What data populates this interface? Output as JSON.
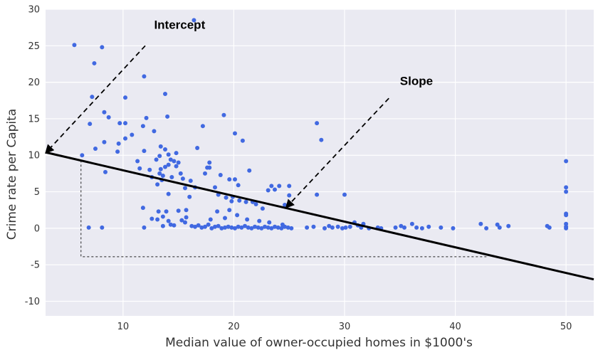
{
  "chart_data": {
    "type": "scatter",
    "title": "",
    "xlabel": "Median value of owner-occupied homes in $1000's",
    "ylabel": "Crime rate per Capita",
    "xlim": [
      3,
      52.5
    ],
    "ylim": [
      -12,
      30
    ],
    "xticks": [
      10,
      20,
      30,
      40,
      50
    ],
    "yticks": [
      -10,
      -5,
      0,
      5,
      10,
      15,
      20,
      25,
      30
    ],
    "grid": true,
    "background_color": "#eaeaf2",
    "point_color": "#4169e1",
    "regression_line": {
      "color": "#000000",
      "points": [
        [
          3,
          10.4
        ],
        [
          52.5,
          -7.0
        ]
      ]
    },
    "guide_box": {
      "x": [
        6.2,
        43
      ],
      "y": [
        9.3,
        -3.9
      ]
    },
    "annotations": [
      {
        "text": "Intercept",
        "text_at": [
          12.8,
          27.3
        ],
        "arrow_from": [
          12.0,
          25.0
        ],
        "arrow_to": [
          3.0,
          10.3
        ]
      },
      {
        "text": "Slope",
        "text_at": [
          35,
          19.6
        ],
        "arrow_from": [
          34.0,
          17.8
        ],
        "arrow_to": [
          24.7,
          2.8
        ]
      }
    ],
    "points": [
      [
        5.6,
        25.1
      ],
      [
        7.0,
        14.3
      ],
      [
        7.2,
        18.0
      ],
      [
        7.4,
        22.6
      ],
      [
        7.5,
        10.9
      ],
      [
        8.1,
        24.8
      ],
      [
        8.3,
        15.9
      ],
      [
        8.3,
        11.8
      ],
      [
        8.4,
        7.7
      ],
      [
        8.7,
        15.2
      ],
      [
        9.5,
        10.5
      ],
      [
        9.6,
        11.6
      ],
      [
        9.7,
        14.4
      ],
      [
        10.2,
        14.4
      ],
      [
        10.2,
        17.9
      ],
      [
        10.2,
        12.3
      ],
      [
        10.8,
        12.8
      ],
      [
        11.3,
        9.2
      ],
      [
        11.5,
        8.2
      ],
      [
        11.8,
        14.0
      ],
      [
        11.9,
        10.6
      ],
      [
        11.9,
        20.8
      ],
      [
        12.1,
        15.1
      ],
      [
        12.4,
        8.0
      ],
      [
        12.6,
        7.0
      ],
      [
        12.8,
        13.3
      ],
      [
        13.0,
        9.4
      ],
      [
        13.1,
        6.0
      ],
      [
        13.3,
        9.9
      ],
      [
        13.3,
        7.5
      ],
      [
        13.4,
        8.1
      ],
      [
        13.4,
        11.2
      ],
      [
        13.5,
        6.6
      ],
      [
        13.6,
        7.2
      ],
      [
        13.8,
        10.8
      ],
      [
        13.8,
        8.4
      ],
      [
        13.8,
        18.4
      ],
      [
        14.0,
        15.3
      ],
      [
        14.1,
        10.1
      ],
      [
        14.1,
        8.7
      ],
      [
        14.1,
        4.7
      ],
      [
        14.3,
        9.4
      ],
      [
        14.4,
        7.0
      ],
      [
        14.6,
        9.2
      ],
      [
        14.8,
        8.5
      ],
      [
        14.8,
        10.3
      ],
      [
        15.0,
        9.0
      ],
      [
        15.2,
        7.5
      ],
      [
        15.4,
        6.8
      ],
      [
        15.6,
        5.5
      ],
      [
        15.7,
        2.5
      ],
      [
        16.0,
        4.3
      ],
      [
        16.1,
        6.5
      ],
      [
        16.4,
        28.5
      ],
      [
        16.5,
        5.6
      ],
      [
        16.7,
        11.0
      ],
      [
        17.2,
        14.0
      ],
      [
        17.4,
        7.5
      ],
      [
        17.6,
        8.3
      ],
      [
        17.8,
        8.3
      ],
      [
        17.8,
        9.0
      ],
      [
        18.3,
        5.6
      ],
      [
        18.6,
        4.6
      ],
      [
        18.8,
        7.3
      ],
      [
        19.1,
        15.5
      ],
      [
        19.3,
        4.2
      ],
      [
        19.6,
        6.7
      ],
      [
        19.8,
        3.7
      ],
      [
        19.9,
        4.3
      ],
      [
        20.1,
        6.7
      ],
      [
        20.1,
        13.0
      ],
      [
        20.4,
        5.9
      ],
      [
        20.5,
        3.8
      ],
      [
        20.8,
        12.0
      ],
      [
        21.1,
        3.6
      ],
      [
        21.4,
        7.9
      ],
      [
        21.7,
        3.6
      ],
      [
        22.0,
        3.3
      ],
      [
        22.6,
        2.7
      ],
      [
        23.1,
        5.2
      ],
      [
        23.4,
        5.8
      ],
      [
        23.7,
        5.3
      ],
      [
        24.1,
        5.8
      ],
      [
        24.6,
        3.2
      ],
      [
        25.0,
        5.8
      ],
      [
        25.0,
        4.5
      ],
      [
        25.0,
        3.2
      ],
      [
        27.5,
        14.4
      ],
      [
        27.5,
        4.6
      ],
      [
        27.9,
        12.1
      ],
      [
        30.0,
        4.6
      ],
      [
        11.8,
        2.8
      ],
      [
        11.9,
        0.1
      ],
      [
        12.6,
        1.3
      ],
      [
        13.1,
        1.2
      ],
      [
        13.2,
        2.3
      ],
      [
        13.6,
        1.6
      ],
      [
        13.6,
        0.3
      ],
      [
        13.9,
        2.3
      ],
      [
        14.1,
        1.0
      ],
      [
        14.3,
        0.5
      ],
      [
        14.6,
        0.4
      ],
      [
        15.0,
        2.4
      ],
      [
        15.3,
        1.1
      ],
      [
        15.6,
        0.8
      ],
      [
        15.7,
        1.5
      ],
      [
        16.2,
        0.3
      ],
      [
        16.5,
        0.2
      ],
      [
        16.8,
        0.4
      ],
      [
        17.1,
        0.1
      ],
      [
        17.4,
        0.2
      ],
      [
        17.7,
        0.5
      ],
      [
        18.0,
        0.0
      ],
      [
        18.3,
        0.2
      ],
      [
        18.6,
        0.3
      ],
      [
        18.9,
        0.0
      ],
      [
        19.2,
        0.1
      ],
      [
        19.5,
        0.2
      ],
      [
        19.8,
        0.1
      ],
      [
        20.1,
        0.0
      ],
      [
        20.4,
        0.2
      ],
      [
        20.7,
        0.1
      ],
      [
        21.0,
        0.3
      ],
      [
        21.3,
        0.1
      ],
      [
        21.6,
        0.0
      ],
      [
        21.9,
        0.2
      ],
      [
        22.2,
        0.1
      ],
      [
        22.5,
        0.0
      ],
      [
        22.8,
        0.2
      ],
      [
        23.1,
        0.1
      ],
      [
        23.4,
        0.0
      ],
      [
        23.7,
        0.2
      ],
      [
        24.0,
        0.1
      ],
      [
        24.3,
        0.0
      ],
      [
        24.6,
        0.2
      ],
      [
        24.9,
        0.1
      ],
      [
        25.2,
        0.0
      ],
      [
        17.9,
        1.2
      ],
      [
        18.5,
        2.3
      ],
      [
        19.2,
        1.4
      ],
      [
        19.6,
        2.5
      ],
      [
        20.3,
        1.8
      ],
      [
        21.2,
        1.2
      ],
      [
        22.3,
        1.0
      ],
      [
        23.2,
        0.8
      ],
      [
        24.4,
        0.5
      ],
      [
        26.6,
        0.1
      ],
      [
        27.2,
        0.2
      ],
      [
        28.2,
        0.0
      ],
      [
        28.6,
        0.3
      ],
      [
        28.9,
        0.1
      ],
      [
        29.4,
        0.2
      ],
      [
        29.8,
        0.0
      ],
      [
        30.1,
        0.1
      ],
      [
        30.5,
        0.2
      ],
      [
        30.9,
        0.8
      ],
      [
        31.2,
        0.4
      ],
      [
        31.5,
        0.1
      ],
      [
        31.7,
        0.6
      ],
      [
        32.2,
        0.0
      ],
      [
        33.0,
        0.1
      ],
      [
        33.3,
        0.0
      ],
      [
        34.6,
        0.1
      ],
      [
        35.1,
        0.3
      ],
      [
        35.4,
        0.1
      ],
      [
        36.1,
        0.6
      ],
      [
        36.5,
        0.1
      ],
      [
        37.0,
        0.0
      ],
      [
        37.6,
        0.2
      ],
      [
        38.7,
        0.1
      ],
      [
        39.8,
        0.0
      ],
      [
        42.3,
        0.6
      ],
      [
        42.8,
        0.0
      ],
      [
        43.8,
        0.5
      ],
      [
        44.0,
        0.1
      ],
      [
        44.8,
        0.3
      ],
      [
        48.3,
        0.3
      ],
      [
        48.5,
        0.1
      ],
      [
        50.0,
        9.2
      ],
      [
        50.0,
        5.6
      ],
      [
        50.0,
        5.0
      ],
      [
        50.0,
        2.0
      ],
      [
        50.0,
        1.8
      ],
      [
        50.0,
        0.6
      ],
      [
        50.0,
        0.2
      ],
      [
        50.0,
        0.0
      ],
      [
        6.3,
        10.0
      ],
      [
        6.9,
        0.1
      ],
      [
        8.1,
        0.1
      ]
    ]
  }
}
